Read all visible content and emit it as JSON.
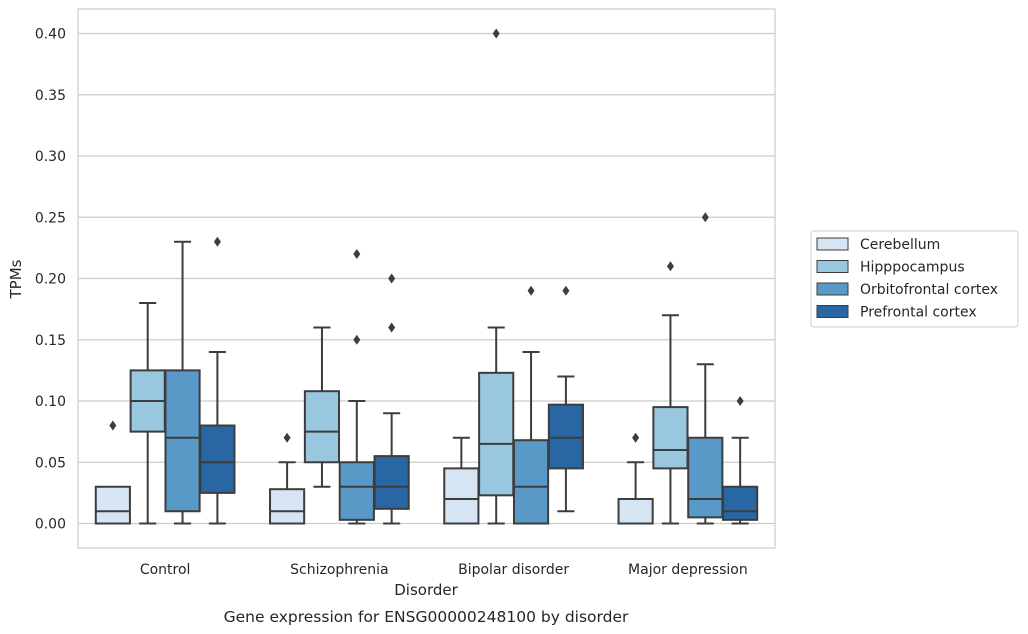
{
  "chart_data": {
    "type": "box",
    "title": "",
    "caption": "Gene expression for ENSG00000248100 by disorder",
    "xlabel": "Disorder",
    "ylabel": "TPMs",
    "ylim": [
      -0.02,
      0.42
    ],
    "yticks": [
      "0.00",
      "0.05",
      "0.10",
      "0.15",
      "0.20",
      "0.25",
      "0.30",
      "0.35",
      "0.40"
    ],
    "grid": "horizontal",
    "legend": "right, outside",
    "categories": [
      "Control",
      "Schizophrenia",
      "Bipolar disorder",
      "Major depression"
    ],
    "series": [
      {
        "name": "Cerebellum",
        "color": "#d6e5f4",
        "boxes": [
          {
            "min": 0.0,
            "q1": 0.0,
            "median": 0.01,
            "q3": 0.03,
            "max": 0.03,
            "outliers": [
              0.08
            ]
          },
          {
            "min": 0.0,
            "q1": 0.0,
            "median": 0.01,
            "q3": 0.028,
            "max": 0.05,
            "outliers": [
              0.07
            ]
          },
          {
            "min": 0.0,
            "q1": 0.0,
            "median": 0.02,
            "q3": 0.045,
            "max": 0.07,
            "outliers": []
          },
          {
            "min": 0.0,
            "q1": 0.0,
            "median": 0.0,
            "q3": 0.02,
            "max": 0.05,
            "outliers": [
              0.07
            ]
          }
        ]
      },
      {
        "name": "Hipppocampus",
        "color": "#9ac7e0",
        "boxes": [
          {
            "min": 0.0,
            "q1": 0.075,
            "median": 0.1,
            "q3": 0.125,
            "max": 0.18,
            "outliers": []
          },
          {
            "min": 0.03,
            "q1": 0.05,
            "median": 0.075,
            "q3": 0.108,
            "max": 0.16,
            "outliers": []
          },
          {
            "min": 0.0,
            "q1": 0.023,
            "median": 0.065,
            "q3": 0.123,
            "max": 0.16,
            "outliers": [
              0.4
            ]
          },
          {
            "min": 0.0,
            "q1": 0.045,
            "median": 0.06,
            "q3": 0.095,
            "max": 0.17,
            "outliers": [
              0.21
            ]
          }
        ]
      },
      {
        "name": "Orbitofrontal cortex",
        "color": "#5899c8",
        "boxes": [
          {
            "min": 0.0,
            "q1": 0.01,
            "median": 0.07,
            "q3": 0.125,
            "max": 0.23,
            "outliers": []
          },
          {
            "min": 0.0,
            "q1": 0.003,
            "median": 0.03,
            "q3": 0.05,
            "max": 0.1,
            "outliers": [
              0.15,
              0.22
            ]
          },
          {
            "min": 0.0,
            "q1": 0.0,
            "median": 0.03,
            "q3": 0.068,
            "max": 0.14,
            "outliers": [
              0.19
            ]
          },
          {
            "min": 0.0,
            "q1": 0.005,
            "median": 0.02,
            "q3": 0.07,
            "max": 0.13,
            "outliers": [
              0.25
            ]
          }
        ]
      },
      {
        "name": "Prefrontal cortex",
        "color": "#2866a4",
        "boxes": [
          {
            "min": 0.0,
            "q1": 0.025,
            "median": 0.05,
            "q3": 0.08,
            "max": 0.14,
            "outliers": [
              0.23
            ]
          },
          {
            "min": 0.0,
            "q1": 0.012,
            "median": 0.03,
            "q3": 0.055,
            "max": 0.09,
            "outliers": [
              0.16,
              0.2
            ]
          },
          {
            "min": 0.01,
            "q1": 0.045,
            "median": 0.07,
            "q3": 0.097,
            "max": 0.12,
            "outliers": [
              0.19
            ]
          },
          {
            "min": 0.0,
            "q1": 0.003,
            "median": 0.01,
            "q3": 0.03,
            "max": 0.07,
            "outliers": [
              0.1
            ]
          }
        ]
      }
    ]
  }
}
